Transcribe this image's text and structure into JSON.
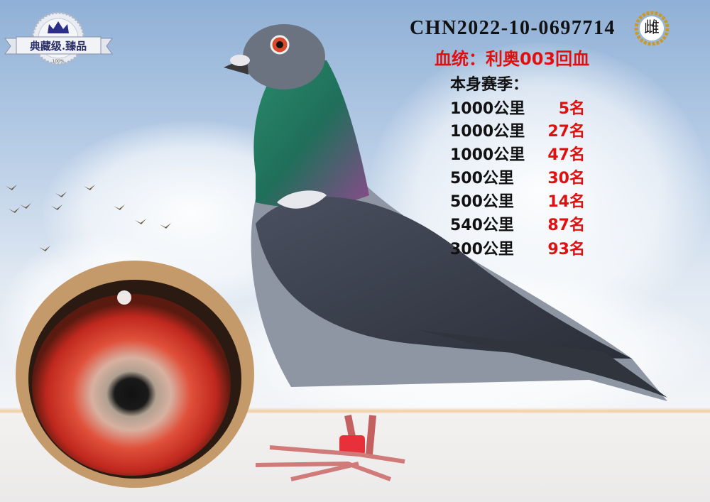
{
  "logo": {
    "text": "典藏级.臻品",
    "small_text": "100%"
  },
  "ring_number": "CHN2022-10-0697714",
  "sex_badge": "雌",
  "bloodline": "血统：利奥003回血",
  "season_title": "本身赛季：",
  "results": [
    {
      "distance": "1000公里",
      "rank": "5名"
    },
    {
      "distance": "1000公里",
      "rank": "27名"
    },
    {
      "distance": "1000公里",
      "rank": "47名"
    },
    {
      "distance": "500公里",
      "rank": "30名"
    },
    {
      "distance": "500公里",
      "rank": "14名"
    },
    {
      "distance": "540公里",
      "rank": "87名"
    },
    {
      "distance": "300公里",
      "rank": "93名"
    }
  ],
  "colors": {
    "rank": "#e01010",
    "text": "#111111",
    "badge_gold": "#c89a2a"
  }
}
